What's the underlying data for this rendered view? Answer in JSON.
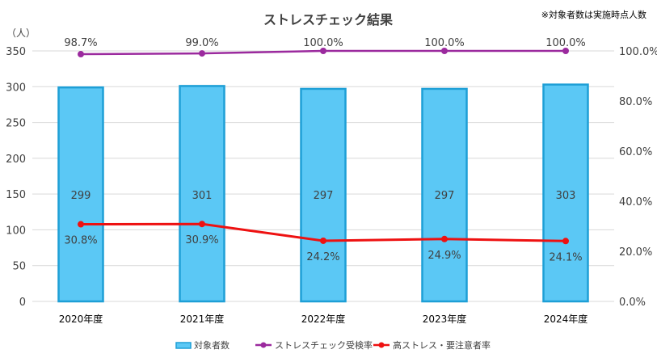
{
  "chart_data": {
    "type": "bar",
    "title": "ストレスチェック結果",
    "note": "※対象者数は実施時点人数",
    "left_axis_unit": "（人）",
    "categories": [
      "2020年度",
      "2021年度",
      "2022年度",
      "2023年度",
      "2024年度"
    ],
    "left_axis": {
      "min": 0,
      "max": 350,
      "ticks": [
        0,
        50,
        100,
        150,
        200,
        250,
        300,
        350
      ]
    },
    "right_axis": {
      "min": 0,
      "max": 100,
      "ticks": [
        "0.0%",
        "20.0%",
        "40.0%",
        "60.0%",
        "80.0%",
        "100.0%"
      ],
      "tick_values": [
        0,
        20,
        40,
        60,
        80,
        100
      ]
    },
    "grid": true,
    "legend_position": "bottom",
    "series": [
      {
        "name": "対象者数",
        "type": "bar",
        "axis": "left",
        "color": "#5bc8f5",
        "border_color": "#1e9fd6",
        "values": [
          299,
          301,
          297,
          297,
          303
        ],
        "labels": [
          "299",
          "301",
          "297",
          "297",
          "303"
        ]
      },
      {
        "name": "ストレスチェック受検率",
        "type": "line",
        "axis": "right",
        "color": "#9b2a9e",
        "values": [
          98.7,
          99.0,
          100.0,
          100.0,
          100.0
        ],
        "labels": [
          "98.7%",
          "99.0%",
          "100.0%",
          "100.0%",
          "100.0%"
        ]
      },
      {
        "name": "高ストレス・要注意者率",
        "type": "line",
        "axis": "right",
        "color": "#ee1111",
        "values": [
          30.8,
          30.9,
          24.2,
          24.9,
          24.1
        ],
        "labels": [
          "30.8%",
          "30.9%",
          "24.2%",
          "24.9%",
          "24.1%"
        ]
      }
    ]
  }
}
